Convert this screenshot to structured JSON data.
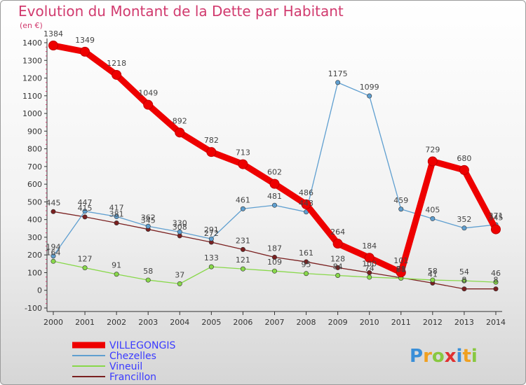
{
  "chart_data": {
    "type": "line",
    "title": "Evolution du Montant de la Dette par Habitant",
    "unit_label": "(en €)",
    "categories": [
      "2000",
      "2001",
      "2002",
      "2003",
      "2004",
      "2005",
      "2006",
      "2007",
      "2008",
      "2009",
      "2010",
      "2011",
      "2012",
      "2013",
      "2014"
    ],
    "ylim": [
      -100,
      1400
    ],
    "yticks": [
      -100,
      0,
      100,
      200,
      300,
      400,
      500,
      600,
      700,
      800,
      900,
      1000,
      1100,
      1200,
      1300,
      1400
    ],
    "grid": false,
    "legend_position": "bottom-left",
    "series": [
      {
        "name": "VILLEGONGIS",
        "color": "#ee0000",
        "values": [
          1384,
          1349,
          1218,
          1049,
          892,
          782,
          713,
          602,
          486,
          264,
          184,
          101,
          729,
          680,
          345
        ],
        "labels": [
          "1384",
          "1349",
          "1218",
          "1049",
          "892",
          "782",
          "713",
          "602",
          "486",
          "264",
          "184",
          "101",
          "729",
          "680",
          "345"
        ]
      },
      {
        "name": "Chezelles",
        "color": "#5f9fd0",
        "values": [
          194,
          447,
          417,
          362,
          330,
          291,
          461,
          481,
          443,
          1175,
          1099,
          459,
          405,
          352,
          371
        ],
        "labels": [
          "194",
          "447",
          "417",
          "362",
          "330",
          "291",
          "461",
          "481",
          "443",
          "1175",
          "1099",
          "459",
          "405",
          "352",
          "371"
        ]
      },
      {
        "name": "Vineuil",
        "color": "#88d84a",
        "values": [
          164,
          127,
          91,
          58,
          37,
          133,
          121,
          109,
          95,
          84,
          74,
          68,
          58,
          54,
          46
        ],
        "labels": [
          "164",
          "127",
          "91",
          "58",
          "37",
          "133",
          "121",
          "109",
          "95",
          "84",
          "74",
          "68",
          "58",
          "54",
          "46"
        ]
      },
      {
        "name": "Francillon",
        "color": "#7a2020",
        "values": [
          445,
          415,
          381,
          345,
          308,
          272,
          231,
          187,
          161,
          128,
          100,
          71,
          41,
          8,
          8
        ],
        "labels": [
          "445",
          "415",
          "381",
          "345",
          "308",
          "272",
          "231",
          "187",
          "161",
          "128",
          "100",
          "71",
          "41",
          "8",
          "8"
        ]
      }
    ]
  },
  "logo": {
    "parts": [
      "P",
      "r",
      "o",
      "x",
      "i",
      "t",
      "i"
    ],
    "colors": [
      "#3a8fd8",
      "#f0a020",
      "#88c840",
      "#e03030",
      "#3a8fd8",
      "#f0a020",
      "#88c840"
    ]
  }
}
